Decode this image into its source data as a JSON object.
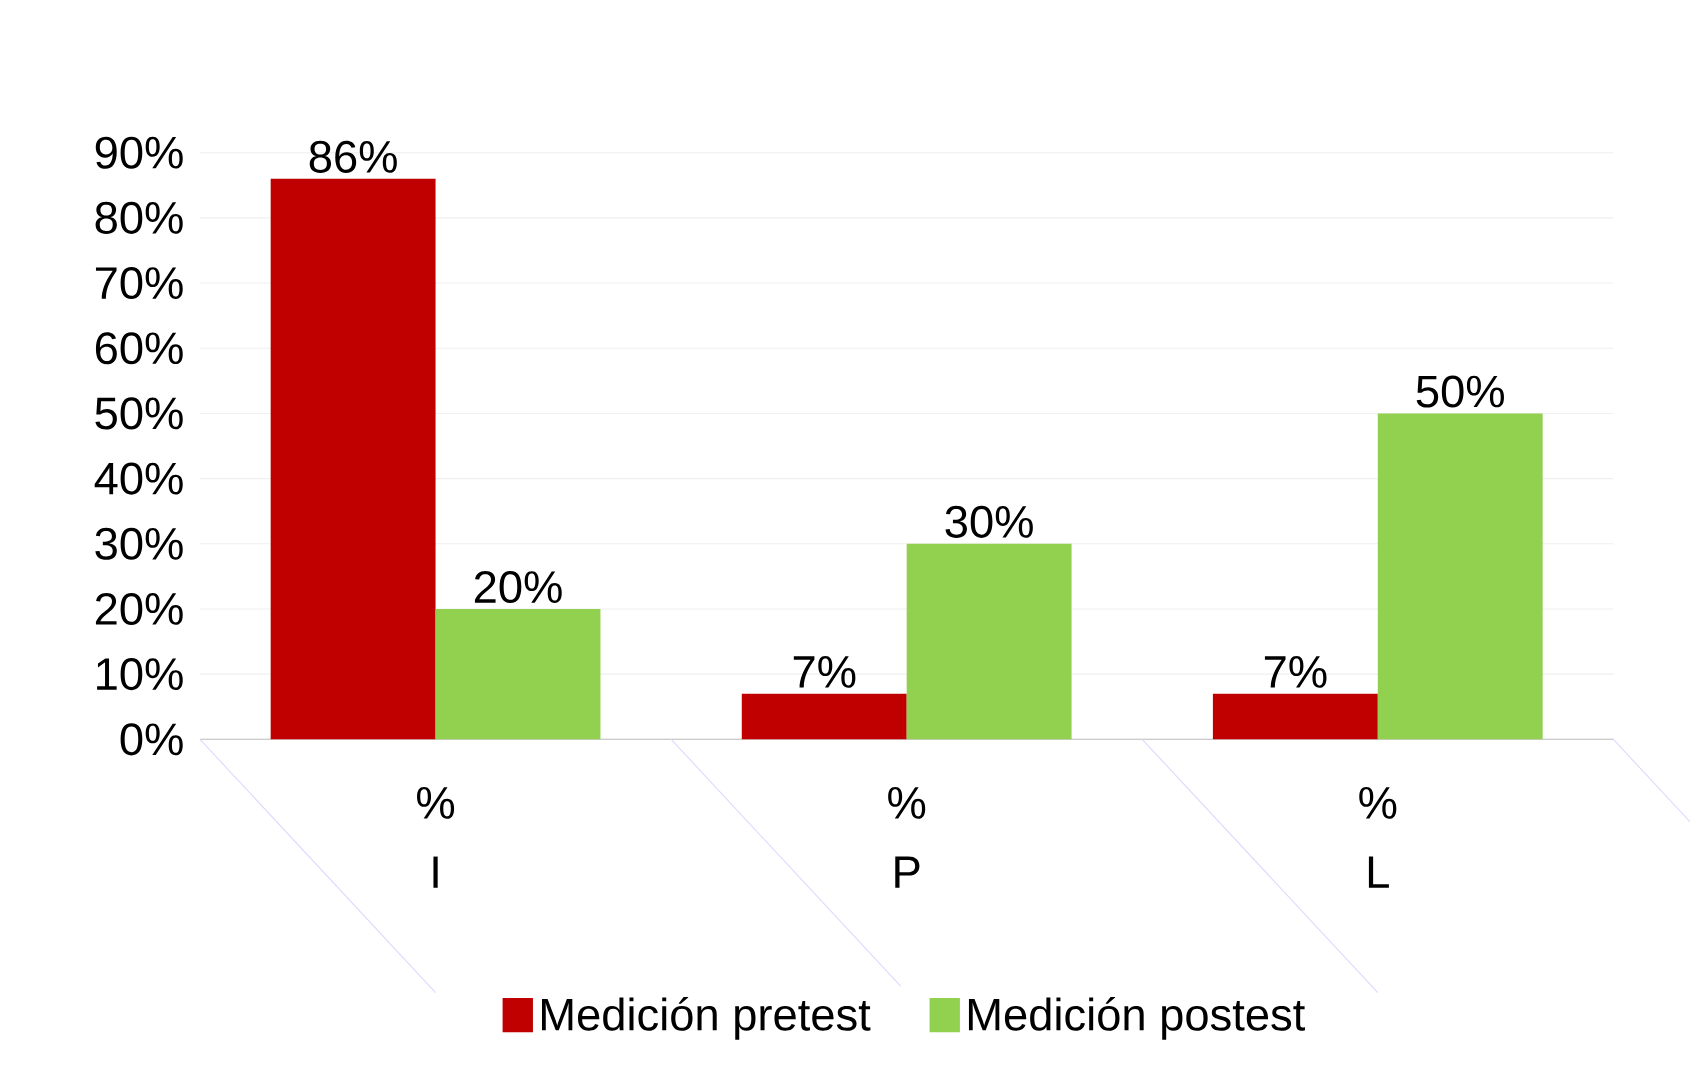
{
  "chart_data": {
    "type": "bar",
    "categories": [
      "I",
      "P",
      "L"
    ],
    "annotations": [
      "%",
      "%",
      "%"
    ],
    "series": [
      {
        "name": "Medición pretest",
        "color": "#c00000",
        "values": [
          86,
          7,
          7
        ],
        "value_labels": [
          "86%",
          "7%",
          "7%"
        ]
      },
      {
        "name": "Medición postest",
        "color": "#92d050",
        "values": [
          20,
          30,
          50
        ],
        "value_labels": [
          "20%",
          "30%",
          "50%"
        ]
      }
    ],
    "ylim": [
      0,
      90
    ],
    "yticks": [
      {
        "value": 0,
        "label": "0%"
      },
      {
        "value": 10,
        "label": "10%"
      },
      {
        "value": 20,
        "label": "20%"
      },
      {
        "value": 30,
        "label": "30%"
      },
      {
        "value": 40,
        "label": "40%"
      },
      {
        "value": 50,
        "label": "50%"
      },
      {
        "value": 60,
        "label": "60%"
      },
      {
        "value": 70,
        "label": "70%"
      },
      {
        "value": 80,
        "label": "80%"
      },
      {
        "value": 90,
        "label": "90%"
      }
    ],
    "grid": "y",
    "legend": "bottom"
  }
}
